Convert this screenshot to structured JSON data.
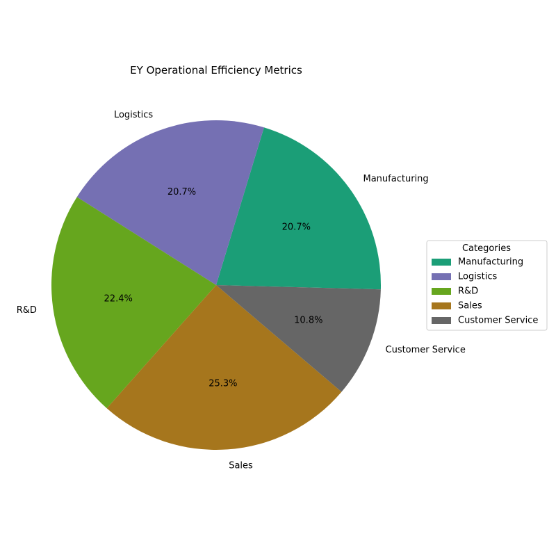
{
  "chart_data": {
    "type": "pie",
    "title": "EY Operational Efficiency Metrics",
    "categories": [
      "Manufacturing",
      "Logistics",
      "R&D",
      "Sales",
      "Customer Service"
    ],
    "percent_labels": [
      "20.7%",
      "20.7%",
      "22.4%",
      "25.3%",
      "10.8%"
    ],
    "values": [
      20.7,
      20.7,
      22.4,
      25.3,
      10.8
    ],
    "colors": [
      "#1b9e77",
      "#7570b3",
      "#66a61e",
      "#a6761d",
      "#666666"
    ],
    "start_angle_deg": -1.5,
    "direction": "counterclockwise",
    "legend": {
      "title": "Categories",
      "placement": "center-right"
    }
  }
}
